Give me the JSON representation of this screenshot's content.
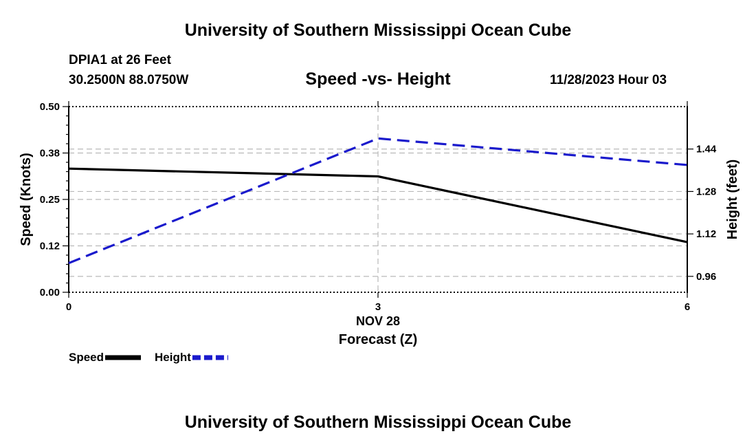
{
  "header": {
    "title": "University of Southern Mississippi Ocean Cube",
    "station": "DPIA1 at 26 Feet",
    "coords": "30.2500N  88.0750W",
    "subtitle": "Speed -vs- Height",
    "timestamp": "11/28/2023 Hour 03"
  },
  "footer": {
    "title": "University of Southern Mississippi Ocean Cube"
  },
  "chart_data": {
    "type": "line",
    "title": "Speed -vs- Height",
    "xlabel": "Forecast (Z)",
    "date_label": "NOV 28",
    "x": [
      0,
      3,
      6
    ],
    "xlim": [
      0,
      6
    ],
    "x_ticks": [
      "0",
      "3",
      "6"
    ],
    "y_left": {
      "label": "Speed (Knots)",
      "lim": [
        0,
        0.5
      ],
      "ticks": [
        0,
        0.125,
        0.25,
        0.375,
        0.5
      ],
      "tick_labels": [
        "0.00",
        "0.12",
        "0.25",
        "0.38",
        "0.50"
      ]
    },
    "y_right": {
      "label": "Height (feet)",
      "lim": [
        0.9,
        1.6
      ],
      "ticks": [
        0.96,
        1.12,
        1.28,
        1.44
      ],
      "tick_labels": [
        "0.96",
        "1.12",
        "1.28",
        "1.44"
      ]
    },
    "series": [
      {
        "name": "Speed",
        "axis": "left",
        "color": "#000000",
        "dash": "solid",
        "values": [
          0.333,
          0.312,
          0.135
        ]
      },
      {
        "name": "Height",
        "axis": "right",
        "color": "#1a1acc",
        "dash": "dashed",
        "values": [
          1.01,
          1.48,
          1.38
        ]
      }
    ],
    "grid": true,
    "legend_position": "bottom-left"
  }
}
